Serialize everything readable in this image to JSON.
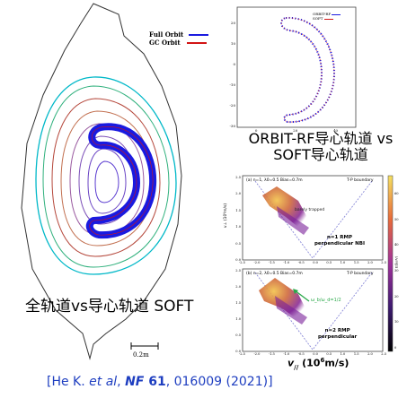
{
  "left_panel": {
    "legend": [
      {
        "label": "Full Orbit",
        "color": "#1a1ae0"
      },
      {
        "label": "GC  Orbit",
        "color": "#d21414"
      }
    ],
    "scale_label": "0.2m",
    "caption": "全轨道vs导心轨道 SOFT"
  },
  "top_right_panel": {
    "legend": [
      {
        "label": "ORBIT-RF",
        "color": "#1a1ae0"
      },
      {
        "label": "SOFT",
        "color": "#d21414"
      }
    ],
    "y_ticks": [
      "20",
      "10",
      "0",
      "-10",
      "-20",
      "-30"
    ],
    "x_ticks": [
      "0",
      "20",
      "40"
    ],
    "caption_line1": "ORBIT-RF导心轨道 vs",
    "caption_line2": "SOFT导心轨道"
  },
  "bottom_right_panel": {
    "top_plot": {
      "header_left": "(a) n=1, λ0=0.5  Bias=0.7m",
      "header_right": "T-P boundary",
      "annotation": "barely trapped",
      "label_line1": "n=1 RMP",
      "label_line2": "perpendicular NBI",
      "y_label": "v⊥ (10⁶m/s)"
    },
    "bottom_plot": {
      "header_left": "(b) n=2, λ0=0.5  Bias=0.7m",
      "header_right": "T-P boundary",
      "annotation": "ω_b/ω_d=1/2",
      "label_line1": "n=2 RMP",
      "label_line2": "perpendicular"
    },
    "x_ticks": [
      "-2.5",
      "-2.0",
      "-1.5",
      "-1.0",
      "-0.5",
      "0.0",
      "0.5",
      "1.0",
      "1.5",
      "2.0",
      "2.5"
    ],
    "y_ticks": [
      "2.5",
      "2.0",
      "1.5",
      "1.0",
      "0.5",
      "0.0"
    ],
    "colorbar_ticks": [
      "60",
      "50",
      "40",
      "30",
      "20",
      "10",
      "0"
    ],
    "colorbar_label": "E(keV)",
    "x_axis_label_main": "v",
    "x_axis_label_sub": "//",
    "x_axis_label_rest": " (10",
    "x_axis_label_exp": "6",
    "x_axis_label_unit": "m/s)"
  },
  "citation": {
    "prefix": "[He K. ",
    "etal": "et al",
    "sep": ", ",
    "journal": "NF",
    "volume": "61",
    "rest": ", 016009 (2021)]",
    "color": "#1e3ec0"
  }
}
